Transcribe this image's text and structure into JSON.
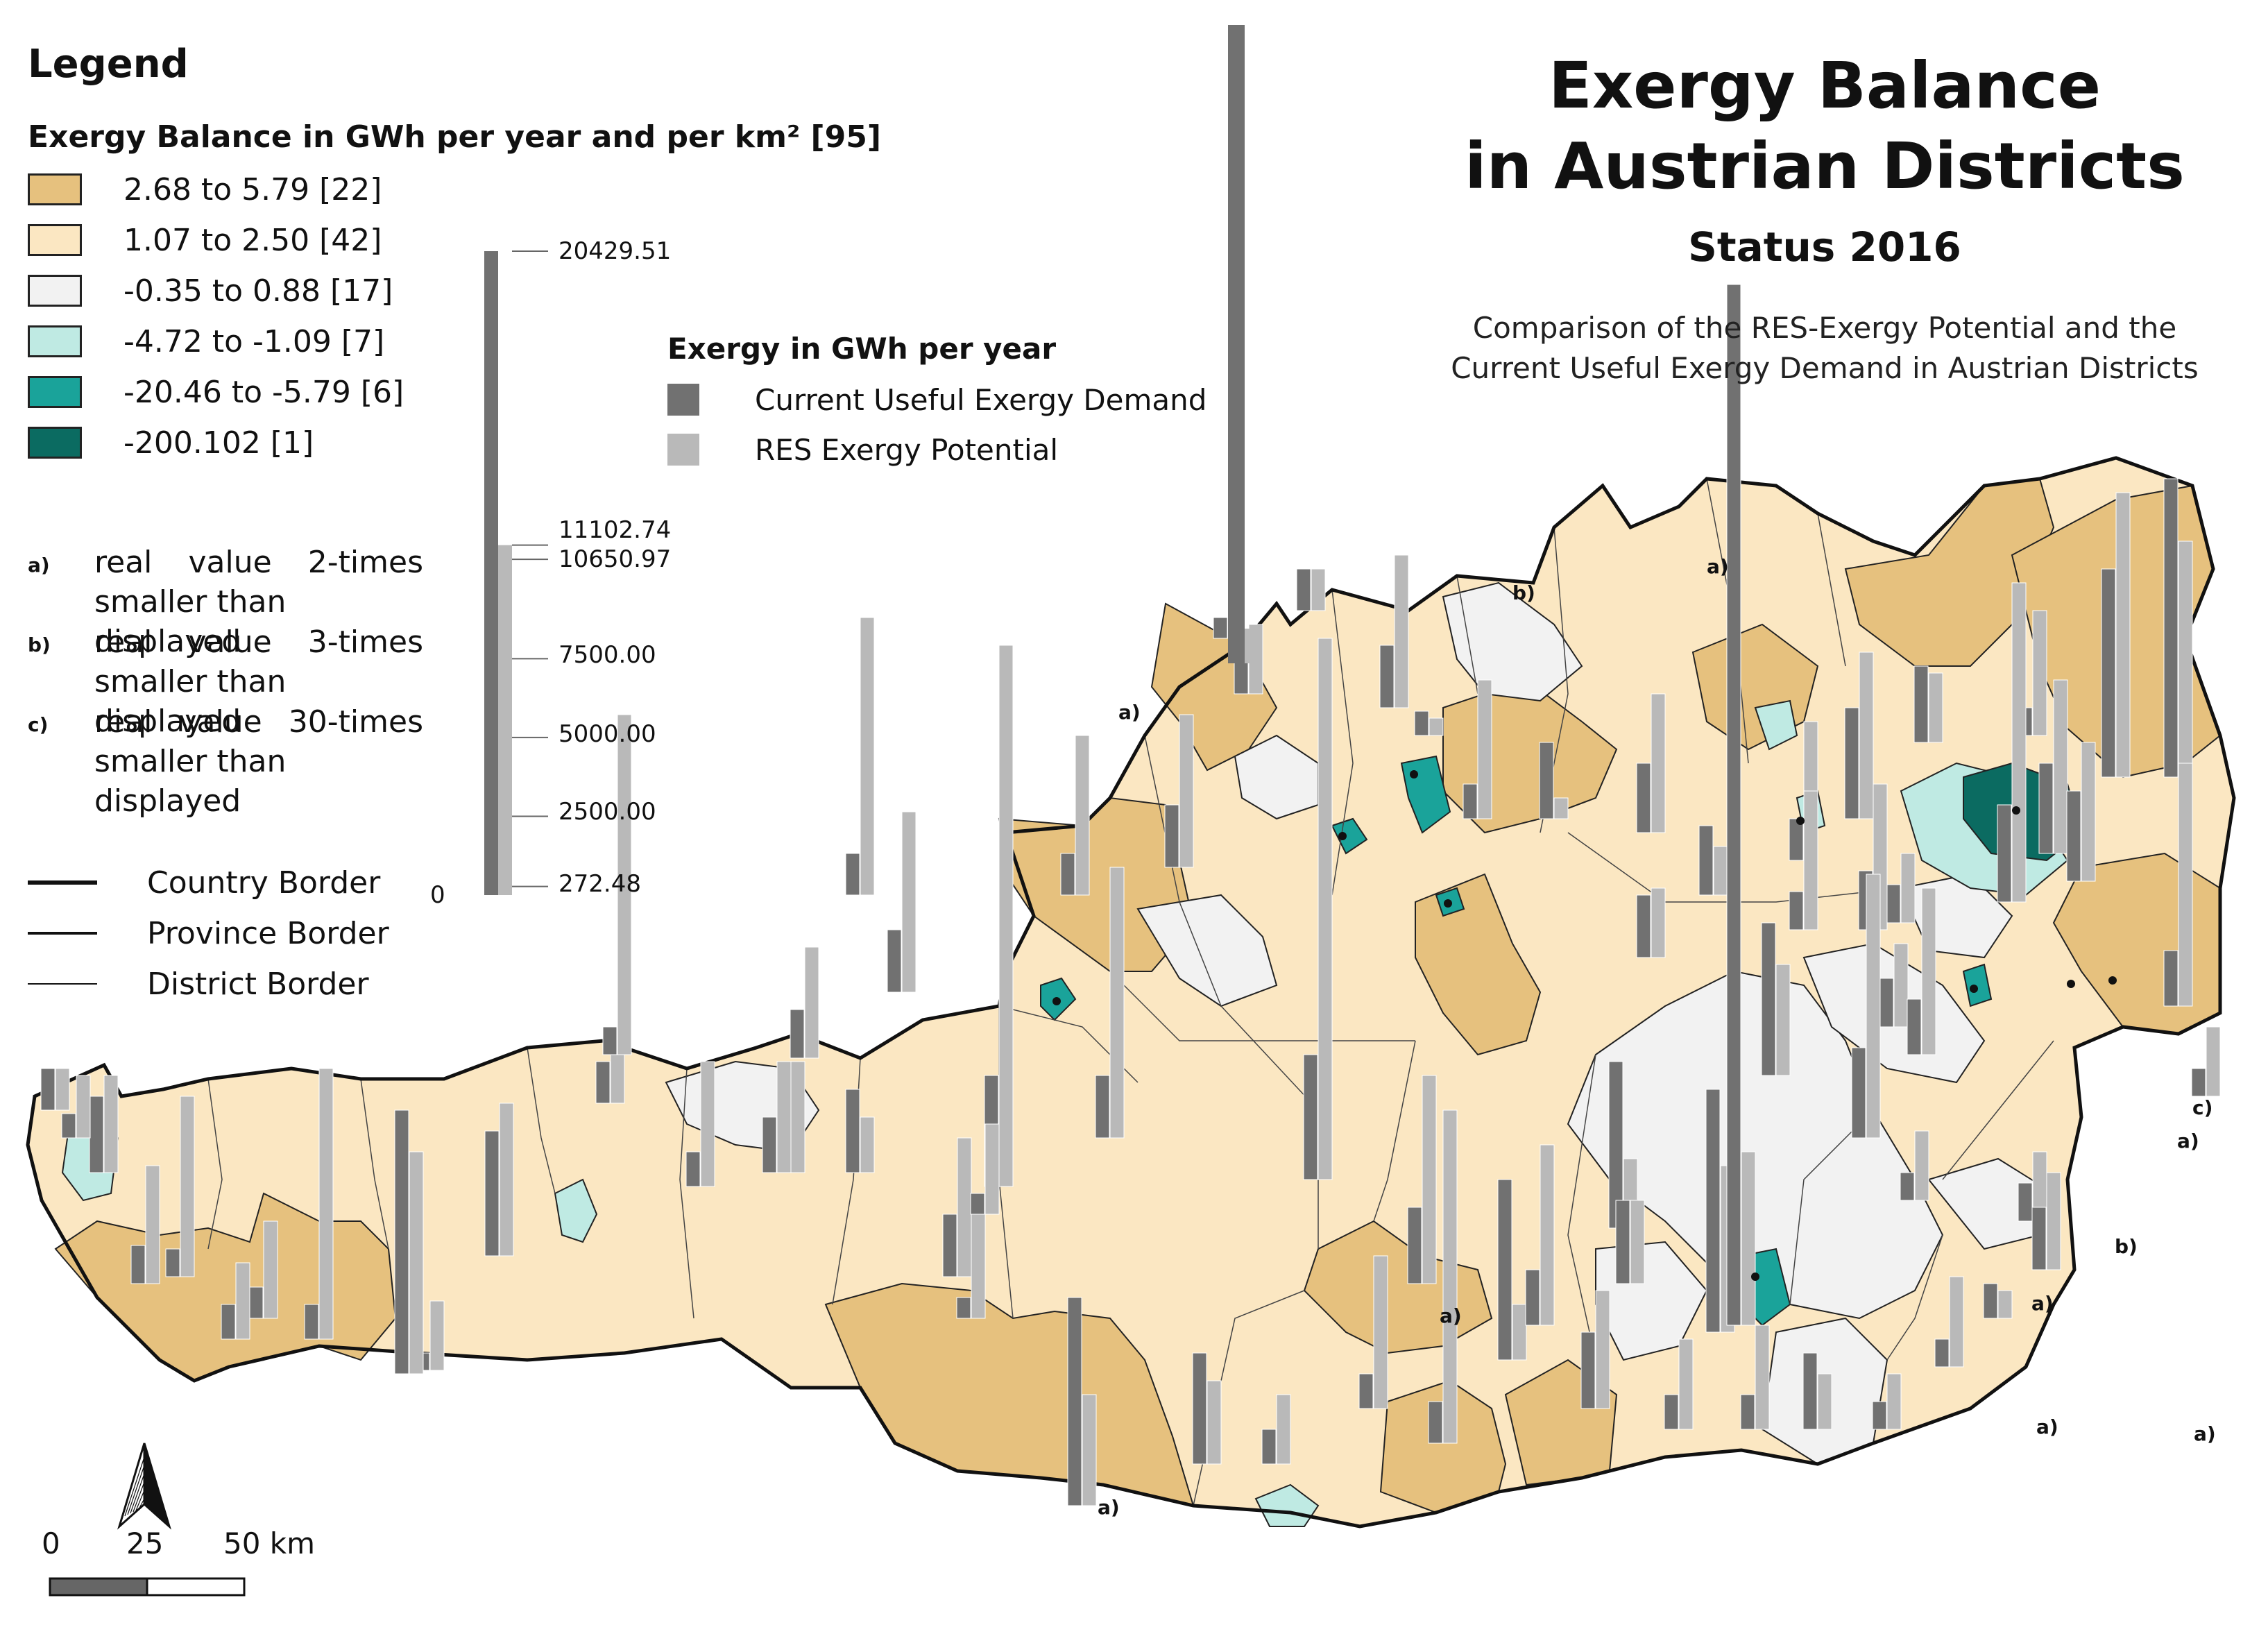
{
  "title": {
    "line1": "Exergy Balance",
    "line2": "in Austrian Districts",
    "status": "Status 2016",
    "subtitle_line1": "Comparison of the RES-Exergy Potential and the",
    "subtitle_line2": "Current Useful Exergy Demand in Austrian Districts"
  },
  "legend": {
    "heading": "Legend",
    "classes_title": "Exergy Balance in GWh per year and per km² [95]",
    "classes": [
      {
        "label": "2.68 to 5.79 [22]",
        "color": "#e6c17e"
      },
      {
        "label": "1.07 to 2.50 [42]",
        "color": "#fbe7c2"
      },
      {
        "label": "-0.35 to 0.88 [17]",
        "color": "#f2f2f2"
      },
      {
        "label": "-4.72 to -1.09 [7]",
        "color": "#bfeae3"
      },
      {
        "label": "-20.46 to -5.79 [6]",
        "color": "#1aa39a"
      },
      {
        "label": "-200.102 [1]",
        "color": "#0b6b61"
      }
    ],
    "notes": [
      {
        "key": "a)",
        "line1_words": [
          "real",
          "value",
          "2-times"
        ],
        "line2": "smaller than displayed"
      },
      {
        "key": "b)",
        "line1_words": [
          "real",
          "value",
          "3-times"
        ],
        "line2": "smaller than displayed"
      },
      {
        "key": "c)",
        "line1_words": [
          "real",
          "value",
          "30-times"
        ],
        "line2": "smaller than displayed"
      }
    ],
    "borders": [
      {
        "label": "Country Border"
      },
      {
        "label": "Province Border"
      },
      {
        "label": "District Border"
      }
    ]
  },
  "exergy_legend": {
    "title": "Exergy in GWh per year",
    "items": [
      {
        "label": "Current Useful Exergy Demand",
        "color": "#717171"
      },
      {
        "label": "RES Exergy Potential",
        "color": "#b9b9b9"
      }
    ]
  },
  "size_scale": {
    "zero_label": "0",
    "demand_max": 20429.51,
    "potential_max": 11102.74,
    "ticks": [
      "20429.51",
      "11102.74",
      "10650.97",
      "7500.00",
      "5000.00",
      "2500.00",
      "272.48"
    ]
  },
  "scalebar": {
    "labels": [
      "0",
      "25",
      "50 km"
    ]
  },
  "map_annotations": [
    "a)",
    "a)",
    "b)",
    "a)",
    "a)",
    "a)",
    "c)",
    "b)",
    "a)",
    "a)",
    "a)"
  ]
}
